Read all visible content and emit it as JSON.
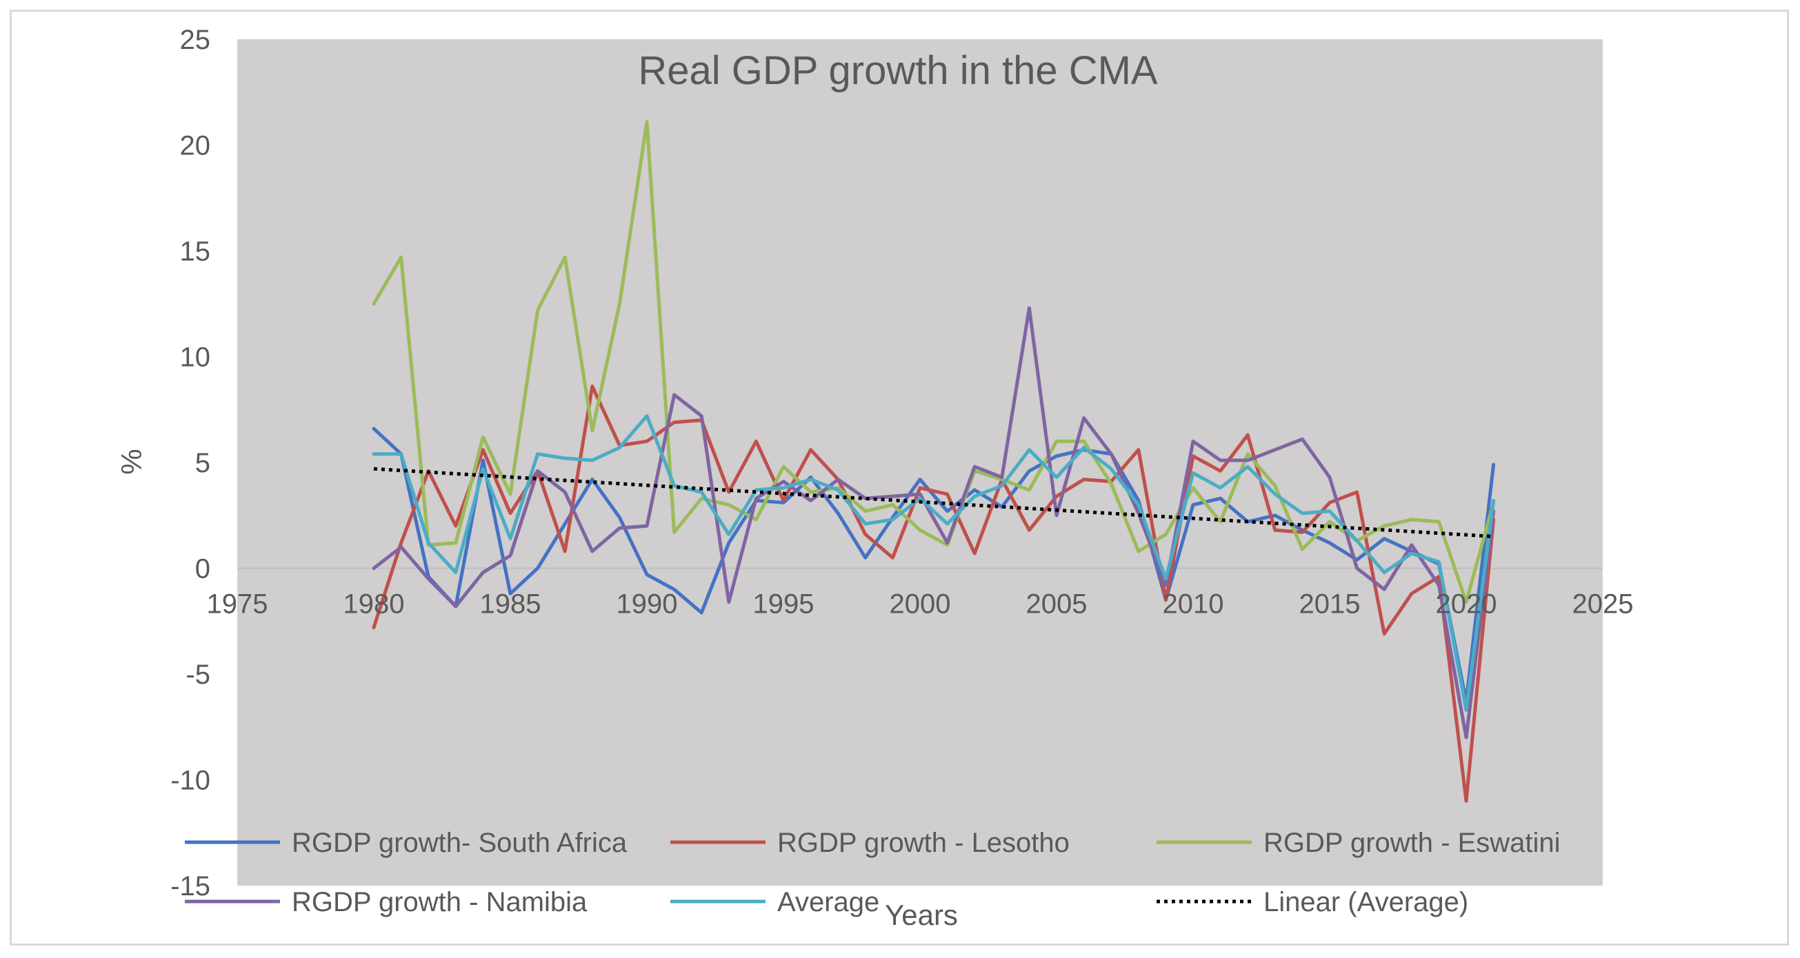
{
  "chart_data": {
    "type": "line",
    "title": "Real GDP growth in the CMA",
    "xlabel": "Years",
    "ylabel": "%",
    "xlim": [
      1975,
      2025
    ],
    "ylim": [
      -15,
      25
    ],
    "x_ticks": [
      1975,
      1980,
      1985,
      1990,
      1995,
      2000,
      2005,
      2010,
      2015,
      2020,
      2025
    ],
    "y_ticks": [
      25,
      20,
      15,
      10,
      5,
      0,
      -5,
      -10,
      -15
    ],
    "x": [
      1980,
      1981,
      1982,
      1983,
      1984,
      1985,
      1986,
      1987,
      1988,
      1989,
      1990,
      1991,
      1992,
      1993,
      1994,
      1995,
      1996,
      1997,
      1998,
      1999,
      2000,
      2001,
      2002,
      2003,
      2004,
      2005,
      2006,
      2007,
      2008,
      2009,
      2010,
      2011,
      2012,
      2013,
      2014,
      2015,
      2016,
      2017,
      2018,
      2019,
      2020,
      2021
    ],
    "series": [
      {
        "name": "RGDP growth- South Africa",
        "color": "#4472c4",
        "values": [
          6.6,
          5.4,
          -0.4,
          -1.8,
          5.1,
          -1.2,
          0.0,
          2.1,
          4.2,
          2.4,
          -0.3,
          -1.0,
          -2.1,
          1.2,
          3.2,
          3.1,
          4.3,
          2.6,
          0.5,
          2.4,
          4.2,
          2.7,
          3.7,
          2.9,
          4.6,
          5.3,
          5.6,
          5.4,
          3.2,
          -1.5,
          3.0,
          3.3,
          2.2,
          2.5,
          1.8,
          1.2,
          0.4,
          1.4,
          0.8,
          0.2,
          -6.3,
          4.9
        ]
      },
      {
        "name": "RGDP growth - Lesotho",
        "color": "#c0504d",
        "values": [
          -2.8,
          1.2,
          4.6,
          2.0,
          5.6,
          2.6,
          4.6,
          0.8,
          8.6,
          5.8,
          6.0,
          6.9,
          7.0,
          3.6,
          6.0,
          3.2,
          5.6,
          4.2,
          1.6,
          0.5,
          3.8,
          3.5,
          0.7,
          4.2,
          1.8,
          3.4,
          4.2,
          4.1,
          5.6,
          -1.5,
          5.3,
          4.6,
          6.3,
          1.8,
          1.7,
          3.1,
          3.6,
          -3.1,
          -1.2,
          -0.4,
          -11.0,
          2.3
        ]
      },
      {
        "name": "RGDP growth  - Eswatini",
        "color": "#9bbb59",
        "values": [
          12.5,
          14.7,
          1.1,
          1.2,
          6.2,
          3.5,
          12.2,
          14.7,
          6.5,
          12.5,
          21.1,
          1.7,
          3.3,
          3.0,
          2.3,
          4.8,
          3.6,
          3.8,
          2.7,
          3.0,
          1.8,
          1.1,
          4.6,
          4.2,
          3.7,
          6.0,
          6.0,
          4.0,
          0.8,
          1.6,
          3.8,
          2.2,
          5.4,
          3.9,
          0.9,
          2.2,
          1.3,
          2.0,
          2.3,
          2.2,
          -1.6,
          3.1
        ]
      },
      {
        "name": "RGDP growth  - Namibia",
        "color": "#8064a2",
        "values": [
          0.0,
          1.0,
          -0.5,
          -1.8,
          -0.2,
          0.6,
          4.6,
          3.6,
          0.8,
          1.9,
          2.0,
          8.2,
          7.2,
          -1.6,
          3.3,
          4.1,
          3.2,
          4.2,
          3.3,
          3.4,
          3.5,
          1.2,
          4.8,
          4.3,
          12.3,
          2.5,
          7.1,
          5.4,
          2.6,
          -0.8,
          6.0,
          5.1,
          5.1,
          5.6,
          6.1,
          4.3,
          0.0,
          -1.0,
          1.1,
          -0.8,
          -8.0,
          2.7
        ]
      },
      {
        "name": "Average",
        "color": "#4bacc6",
        "values": [
          5.4,
          5.4,
          1.2,
          -0.2,
          4.7,
          1.4,
          5.4,
          5.2,
          5.1,
          5.7,
          7.2,
          3.9,
          3.6,
          1.6,
          3.7,
          3.8,
          4.2,
          3.7,
          2.1,
          2.3,
          3.3,
          2.1,
          3.4,
          3.9,
          5.6,
          4.3,
          5.7,
          4.7,
          3.0,
          -0.5,
          4.5,
          3.8,
          4.8,
          3.5,
          2.6,
          2.7,
          1.3,
          -0.2,
          0.7,
          0.3,
          -6.7,
          3.2
        ]
      }
    ],
    "trendline": {
      "name": "Linear (Average)",
      "color": "#000000",
      "style": "dotted",
      "start": [
        1980,
        4.7
      ],
      "end": [
        2021,
        1.5
      ]
    },
    "legend": {
      "placement": "bottom",
      "entries": [
        "RGDP growth- South Africa",
        "RGDP growth - Lesotho",
        "RGDP growth  - Eswatini",
        "RGDP growth  - Namibia",
        "Average",
        "Linear (Average)"
      ]
    }
  }
}
